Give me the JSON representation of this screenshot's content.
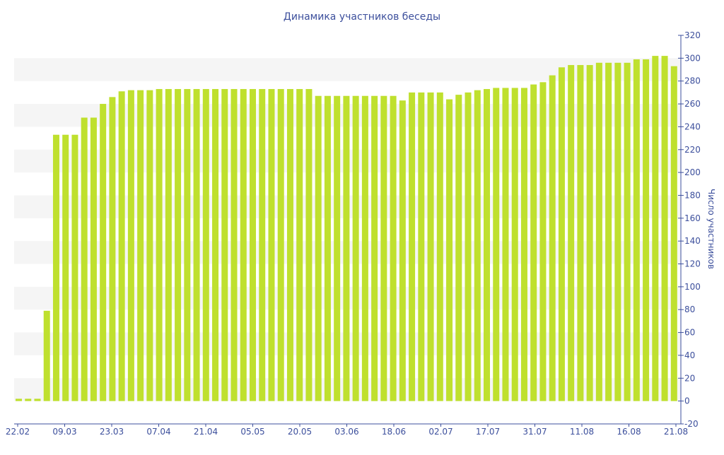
{
  "chart_data": {
    "type": "bar",
    "title": "Динамика участников беседы",
    "ylabel": "Число участников",
    "xlabel": "",
    "ylim": [
      -20,
      320
    ],
    "yticks": [
      -20,
      0,
      20,
      40,
      60,
      80,
      100,
      120,
      140,
      160,
      180,
      200,
      220,
      240,
      260,
      280,
      300,
      320
    ],
    "xticks": [
      "22.02",
      "09.03",
      "23.03",
      "07.04",
      "21.04",
      "05.05",
      "20.05",
      "03.06",
      "18.06",
      "02.07",
      "17.07",
      "31.07",
      "11.08",
      "16.08",
      "21.08"
    ],
    "y_axis_position": "right",
    "grid": "alternating horizontal bands",
    "legend": "none",
    "colors": {
      "bar": "#bfe02e",
      "axis": "#3c4f9c",
      "band": "#f5f5f5",
      "title": "#3c4f9c"
    },
    "values": [
      2,
      2,
      2,
      79,
      233,
      233,
      233,
      248,
      248,
      260,
      266,
      271,
      272,
      272,
      272,
      273,
      273,
      273,
      273,
      273,
      273,
      273,
      273,
      273,
      273,
      273,
      273,
      273,
      273,
      273,
      273,
      273,
      267,
      267,
      267,
      267,
      267,
      267,
      267,
      267,
      267,
      263,
      270,
      270,
      270,
      270,
      264,
      268,
      270,
      272,
      273,
      274,
      274,
      274,
      274,
      277,
      279,
      285,
      292,
      294,
      294,
      294,
      296,
      296,
      296,
      296,
      299,
      299,
      302,
      302,
      293
    ]
  }
}
